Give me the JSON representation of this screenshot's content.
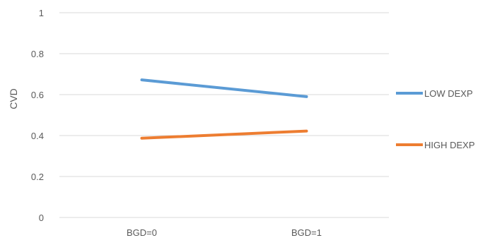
{
  "chart_data": {
    "type": "line",
    "title": "",
    "xlabel": "",
    "ylabel": "CVD",
    "categories": [
      "BGD=0",
      "BGD=1"
    ],
    "ylim": [
      0,
      1
    ],
    "yticks": [
      "0",
      "0.2",
      "0.4",
      "0.6",
      "0.8",
      "1"
    ],
    "grid": true,
    "legend_position": "right",
    "series": [
      {
        "name": "LOW DEXP",
        "values": [
          0.672,
          0.59
        ],
        "color": "#5B9BD5"
      },
      {
        "name": "HIGH DEXP",
        "values": [
          0.387,
          0.422
        ],
        "color": "#ED7D31"
      }
    ]
  }
}
